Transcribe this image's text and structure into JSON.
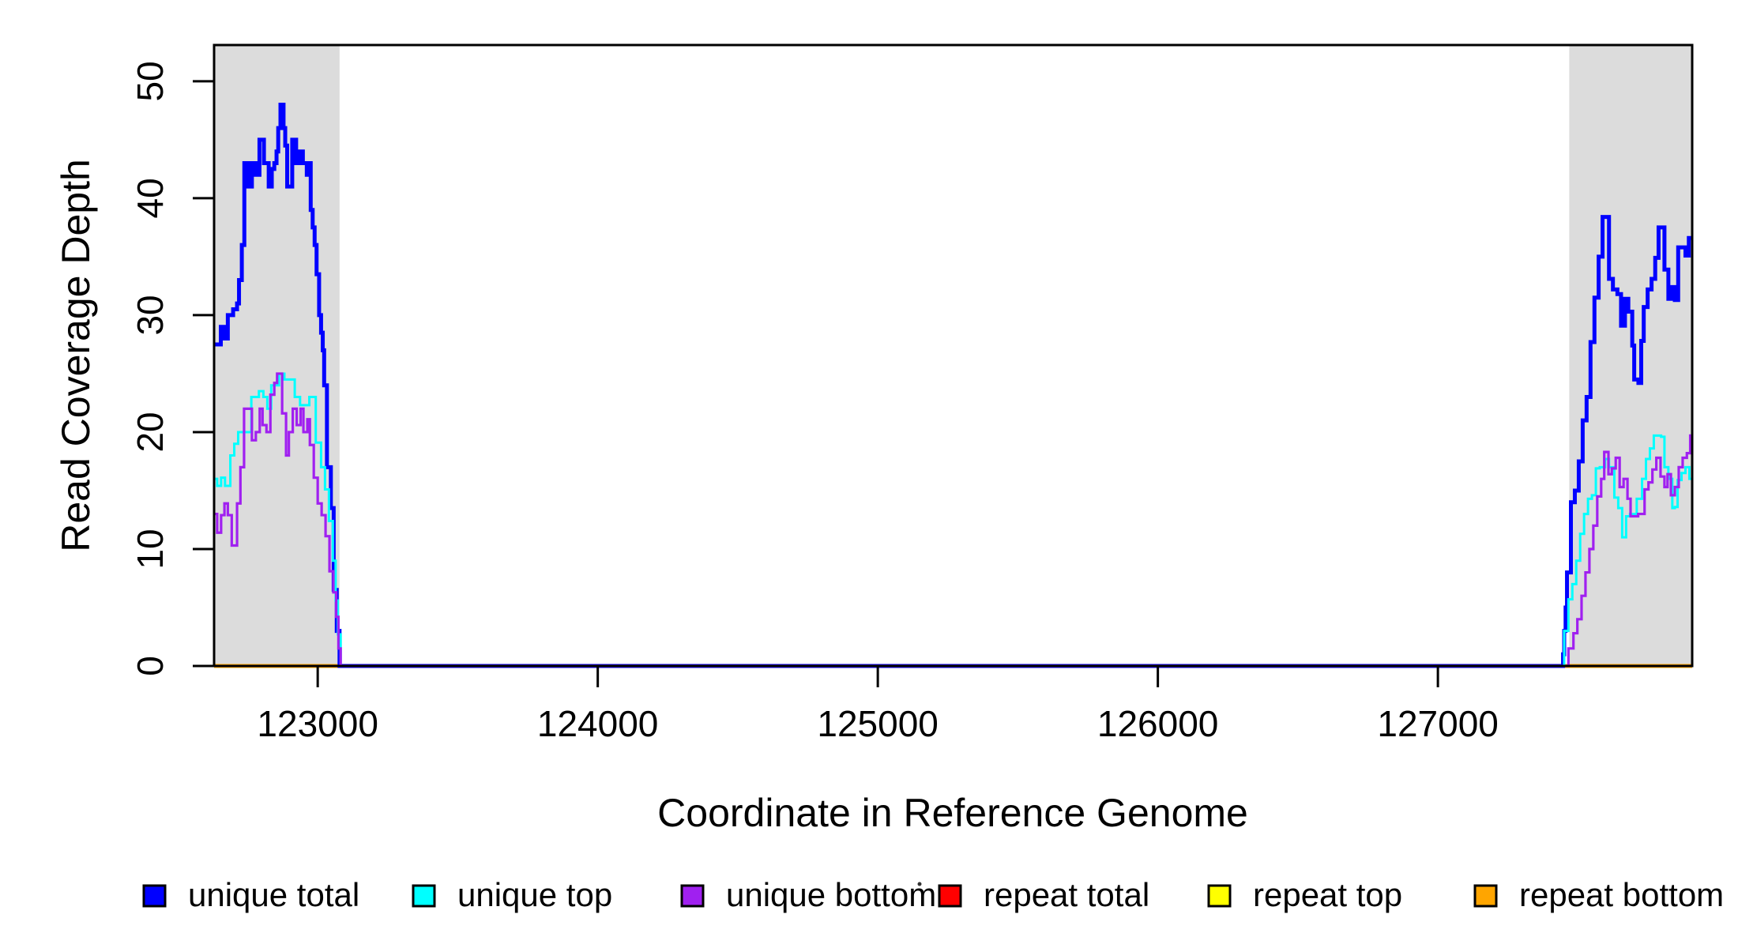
{
  "axes": {
    "x": {
      "title": "Coordinate in Reference Genome",
      "ticks": [
        "123000",
        "124000",
        "125000",
        "126000",
        "127000"
      ],
      "tick_values": [
        123000,
        124000,
        125000,
        126000,
        127000
      ]
    },
    "y": {
      "title": "Read Coverage Depth",
      "ticks": [
        "0",
        "10",
        "20",
        "30",
        "40",
        "50"
      ],
      "tick_values": [
        0,
        10,
        20,
        30,
        40,
        50
      ]
    }
  },
  "legend": {
    "items": [
      {
        "label": "unique total",
        "color": "#0000FF"
      },
      {
        "label": "unique top",
        "color": "#00FFFF"
      },
      {
        "label": "unique bottom",
        "color": "#A020F0"
      },
      {
        "label": "repeat total",
        "color": "#FF0000"
      },
      {
        "label": "repeat top",
        "color": "#FFFF00"
      },
      {
        "label": "repeat bottom",
        "color": "#FFA500"
      }
    ]
  },
  "chart_data": {
    "type": "line",
    "step": true,
    "xlabel": "Coordinate in Reference Genome",
    "ylabel": "Read Coverage Depth",
    "xlim": [
      122630,
      127908
    ],
    "ylim": [
      0,
      53.1
    ],
    "grid": false,
    "highlight_regions": [
      {
        "x0": 122630,
        "x1": 123078,
        "color": "#DCDCDC"
      },
      {
        "x0": 127469,
        "x1": 127908,
        "color": "#DCDCDC"
      }
    ],
    "series": [
      {
        "name": "unique total",
        "color": "#0000FF",
        "width": 5,
        "points": [
          [
            122630,
            27.5
          ],
          [
            122654,
            29
          ],
          [
            122668,
            28
          ],
          [
            122679,
            30
          ],
          [
            122698,
            30.5
          ],
          [
            122712,
            31
          ],
          [
            122719,
            33
          ],
          [
            122729,
            36
          ],
          [
            122738,
            43
          ],
          [
            122752,
            41
          ],
          [
            122765,
            43
          ],
          [
            122779,
            42
          ],
          [
            122792,
            45
          ],
          [
            122808,
            43
          ],
          [
            122825,
            41
          ],
          [
            122836,
            42.5
          ],
          [
            122845,
            43
          ],
          [
            122853,
            44
          ],
          [
            122859,
            46
          ],
          [
            122867,
            48
          ],
          [
            122878,
            46
          ],
          [
            122884,
            44.5
          ],
          [
            122891,
            41
          ],
          [
            122909,
            45
          ],
          [
            122923,
            43
          ],
          [
            122937,
            44
          ],
          [
            122947,
            43
          ],
          [
            122961,
            42
          ],
          [
            122968,
            43
          ],
          [
            122975,
            39
          ],
          [
            122982,
            37.5
          ],
          [
            122989,
            36
          ],
          [
            122996,
            33.5
          ],
          [
            123005,
            30
          ],
          [
            123012,
            28.5
          ],
          [
            123018,
            27
          ],
          [
            123023,
            24
          ],
          [
            123033,
            17
          ],
          [
            123047,
            13.5
          ],
          [
            123057,
            6.5
          ],
          [
            123068,
            3
          ],
          [
            123078,
            0
          ],
          [
            127447,
            1
          ],
          [
            127451,
            3
          ],
          [
            127456,
            5
          ],
          [
            127461,
            8
          ],
          [
            127475,
            14
          ],
          [
            127489,
            15
          ],
          [
            127503,
            17.5
          ],
          [
            127517,
            21
          ],
          [
            127531,
            23
          ],
          [
            127545,
            27.7
          ],
          [
            127559,
            31.5
          ],
          [
            127574,
            35
          ],
          [
            127588,
            38.4
          ],
          [
            127611,
            33.1
          ],
          [
            127625,
            32.2
          ],
          [
            127641,
            31.8
          ],
          [
            127654,
            29.1
          ],
          [
            127668,
            31.4
          ],
          [
            127680,
            30.3
          ],
          [
            127694,
            27.4
          ],
          [
            127701,
            24.5
          ],
          [
            127716,
            24.2
          ],
          [
            127726,
            27.8
          ],
          [
            127735,
            30.7
          ],
          [
            127749,
            32.2
          ],
          [
            127763,
            33.1
          ],
          [
            127776,
            34.9
          ],
          [
            127788,
            37.5
          ],
          [
            127809,
            33.9
          ],
          [
            127823,
            31.4
          ],
          [
            127834,
            32.4
          ],
          [
            127846,
            31.3
          ],
          [
            127858,
            35.8
          ],
          [
            127884,
            35.1
          ],
          [
            127896,
            36.6
          ]
        ]
      },
      {
        "name": "unique top",
        "color": "#00FFFF",
        "width": 3,
        "points": [
          [
            122630,
            16
          ],
          [
            122641,
            15.4
          ],
          [
            122655,
            16.1
          ],
          [
            122669,
            15.4
          ],
          [
            122688,
            18
          ],
          [
            122702,
            19
          ],
          [
            122716,
            20
          ],
          [
            122763,
            23
          ],
          [
            122790,
            23.5
          ],
          [
            122806,
            23
          ],
          [
            122820,
            22
          ],
          [
            122834,
            24
          ],
          [
            122862,
            25
          ],
          [
            122881,
            24.5
          ],
          [
            122918,
            23
          ],
          [
            122937,
            22.3
          ],
          [
            122970,
            23
          ],
          [
            122993,
            19.1
          ],
          [
            123012,
            17
          ],
          [
            123026,
            15.1
          ],
          [
            123040,
            12.4
          ],
          [
            123054,
            9
          ],
          [
            123064,
            5.6
          ],
          [
            123072,
            2.7
          ],
          [
            123082,
            0
          ],
          [
            127451,
            3
          ],
          [
            127466,
            5.7
          ],
          [
            127480,
            7
          ],
          [
            127494,
            9
          ],
          [
            127508,
            11.3
          ],
          [
            127522,
            13
          ],
          [
            127536,
            14.3
          ],
          [
            127550,
            14.6
          ],
          [
            127564,
            16.9
          ],
          [
            127578,
            17
          ],
          [
            127597,
            17.7
          ],
          [
            127611,
            17
          ],
          [
            127630,
            14.4
          ],
          [
            127644,
            13.5
          ],
          [
            127658,
            11
          ],
          [
            127672,
            12.8
          ],
          [
            127686,
            13
          ],
          [
            127710,
            14.3
          ],
          [
            127729,
            16
          ],
          [
            127743,
            17.7
          ],
          [
            127757,
            18.6
          ],
          [
            127771,
            19.7
          ],
          [
            127797,
            19.6
          ],
          [
            127809,
            17
          ],
          [
            127823,
            16
          ],
          [
            127837,
            13.5
          ],
          [
            127846,
            13.6
          ],
          [
            127856,
            15.9
          ],
          [
            127870,
            16.5
          ],
          [
            127884,
            17
          ],
          [
            127898,
            16
          ]
        ]
      },
      {
        "name": "unique bottom",
        "color": "#A020F0",
        "width": 3.2,
        "points": [
          [
            122630,
            13
          ],
          [
            122641,
            11.4
          ],
          [
            122655,
            12.9
          ],
          [
            122667,
            13.9
          ],
          [
            122679,
            12.9
          ],
          [
            122693,
            10.3
          ],
          [
            122712,
            13.9
          ],
          [
            122724,
            17
          ],
          [
            122737,
            22
          ],
          [
            122765,
            19.3
          ],
          [
            122779,
            20
          ],
          [
            122793,
            22
          ],
          [
            122803,
            20.6
          ],
          [
            122817,
            20
          ],
          [
            122831,
            23.2
          ],
          [
            122845,
            24.2
          ],
          [
            122855,
            25
          ],
          [
            122873,
            21.6
          ],
          [
            122887,
            18
          ],
          [
            122897,
            20
          ],
          [
            122911,
            22
          ],
          [
            122925,
            20.6
          ],
          [
            122939,
            22
          ],
          [
            122949,
            20
          ],
          [
            122963,
            21.1
          ],
          [
            122972,
            18.9
          ],
          [
            122986,
            16.1
          ],
          [
            123000,
            13.9
          ],
          [
            123014,
            12.9
          ],
          [
            123028,
            11.1
          ],
          [
            123042,
            8.1
          ],
          [
            123056,
            6.3
          ],
          [
            123066,
            4.2
          ],
          [
            123074,
            1.5
          ],
          [
            123082,
            0
          ],
          [
            127466,
            1.5
          ],
          [
            127484,
            2.8
          ],
          [
            127498,
            4
          ],
          [
            127513,
            6
          ],
          [
            127527,
            8
          ],
          [
            127541,
            10
          ],
          [
            127555,
            12
          ],
          [
            127569,
            14.5
          ],
          [
            127583,
            16
          ],
          [
            127594,
            18.3
          ],
          [
            127609,
            16.4
          ],
          [
            127621,
            16.9
          ],
          [
            127635,
            17.8
          ],
          [
            127649,
            15.3
          ],
          [
            127663,
            16
          ],
          [
            127677,
            14.3
          ],
          [
            127688,
            12.8
          ],
          [
            127715,
            13
          ],
          [
            127738,
            15.1
          ],
          [
            127752,
            15.7
          ],
          [
            127766,
            16.8
          ],
          [
            127780,
            17.8
          ],
          [
            127795,
            16.2
          ],
          [
            127809,
            15.3
          ],
          [
            127820,
            16.4
          ],
          [
            127832,
            14.6
          ],
          [
            127846,
            15.3
          ],
          [
            127860,
            17
          ],
          [
            127874,
            17.8
          ],
          [
            127889,
            18.2
          ],
          [
            127901,
            19.7
          ]
        ]
      },
      {
        "name": "repeat total",
        "color": "#FF0000",
        "width": 3,
        "points": [
          [
            122630,
            0
          ]
        ]
      },
      {
        "name": "repeat top",
        "color": "#FFFF00",
        "width": 3,
        "points": [
          [
            122630,
            0
          ]
        ]
      },
      {
        "name": "repeat bottom",
        "color": "#FFA500",
        "width": 5,
        "points": [
          [
            122630,
            0
          ]
        ]
      }
    ]
  }
}
